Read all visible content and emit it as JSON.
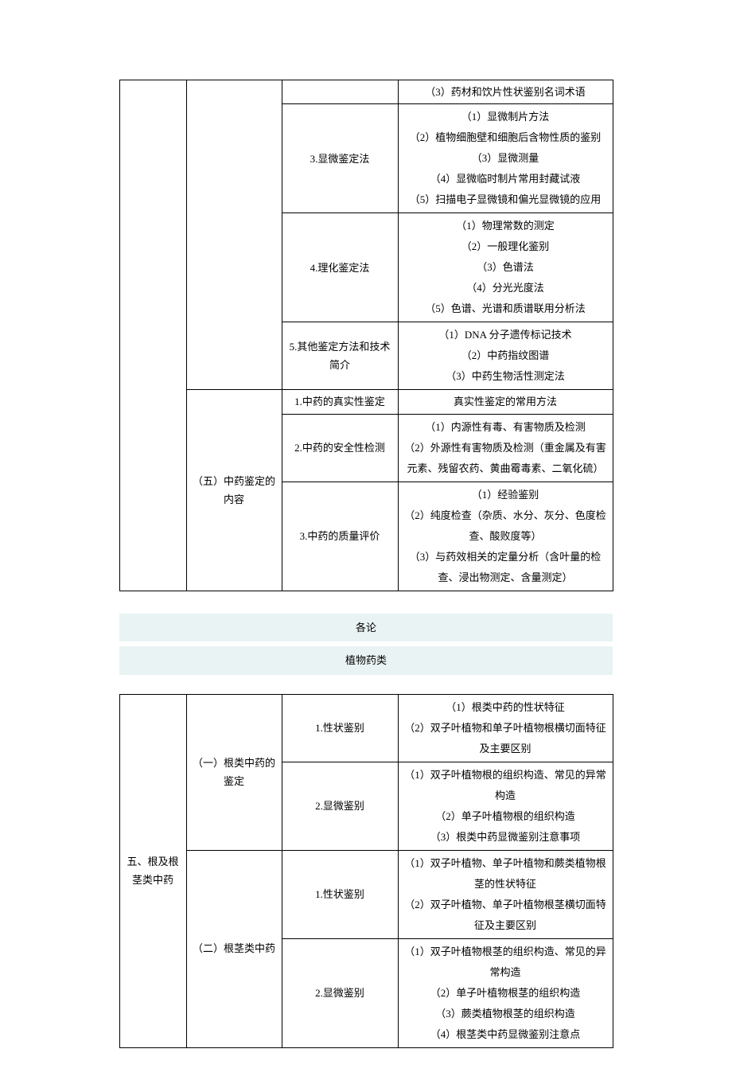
{
  "table1": {
    "col2a": "（五）中药鉴定的内容",
    "rows": [
      {
        "c3": "",
        "c4": "（3）药材和饮片性状鉴别名词术语",
        "c3rowspan": 1,
        "hideC3": true
      },
      {
        "c3": "3.显微鉴定法",
        "c4": "（1）显微制片方法\n（2）植物细胞壁和细胞后含物性质的鉴别\n（3）显微测量\n（4）显微临时制片常用封藏试液\n（5）扫描电子显微镜和偏光显微镜的应用"
      },
      {
        "c3": "4.理化鉴定法",
        "c4": "（1）物理常数的测定\n（2）一般理化鉴别\n（3）色谱法\n（4）分光光度法\n（5）色谱、光谱和质谱联用分析法"
      },
      {
        "c3": "5.其他鉴定方法和技术简介",
        "c4": "（1）DNA 分子遗传标记技术\n（2）中药指纹图谱\n（3）中药生物活性测定法"
      },
      {
        "c3": "1.中药的真实性鉴定",
        "c4": "真实性鉴定的常用方法",
        "newC2": true
      },
      {
        "c3": "2.中药的安全性检测",
        "c4": "（1）内源性有毒、有害物质及检测\n（2）外源性有害物质及检测（重金属及有害元素、残留农药、黄曲霉毒素、二氧化硫）"
      },
      {
        "c3": "3.中药的质量评价",
        "c4": "（1）经验鉴别\n（2）纯度检查（杂质、水分、灰分、色度检查、酸败度等）\n（3）与药效相关的定量分析（含叶量的检查、浸出物测定、含量测定）"
      }
    ]
  },
  "midTitle": "各论",
  "midSub": "植物药类",
  "table2": {
    "col1": "五、根及根茎类中药",
    "groups": [
      {
        "c2": "（一）根类中药的鉴定",
        "rows": [
          {
            "c3": "1.性状鉴别",
            "c4": "（1）根类中药的性状特征\n（2）双子叶植物和单子叶植物根横切面特征及主要区别"
          },
          {
            "c3": "2.显微鉴别",
            "c4": "（1）双子叶植物根的组织构造、常见的异常构造\n（2）单子叶植物根的组织构造\n（3）根类中药显微鉴别注意事项"
          }
        ]
      },
      {
        "c2": "（二）根茎类中药",
        "rows": [
          {
            "c3": "1.性状鉴别",
            "c4": "（1）双子叶植物、单子叶植物和蕨类植物根茎的性状特征\n（2）双子叶植物、单子叶植物根茎横切面特征及主要区别"
          },
          {
            "c3": "2.显微鉴别",
            "c4": "（1）双子叶植物根茎的组织构造、常见的异常构造\n（2）单子叶植物根茎的组织构造\n（3）蕨类植物根茎的组织构造\n（4）根茎类中药显微鉴别注意点"
          }
        ]
      }
    ]
  }
}
